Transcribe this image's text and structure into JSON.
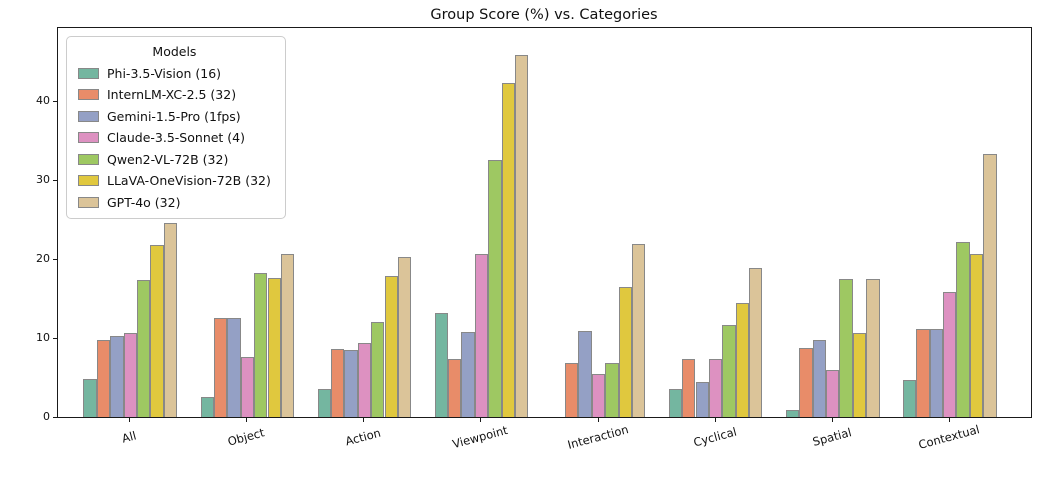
{
  "chart_data": {
    "type": "bar",
    "title": "Group Score (%) vs. Categories",
    "legend_title": "Models",
    "legend_position": "upper left",
    "xlabel": "",
    "ylabel": "",
    "grid": false,
    "background": "#ffffff",
    "bar_edge_color": "#888888",
    "x_tick_rotation_deg": 15,
    "ylim": [
      0,
      49.4
    ],
    "yticks": [
      0,
      10,
      20,
      30,
      40
    ],
    "categories": [
      "All",
      "Object",
      "Action",
      "Viewpoint",
      "Interaction",
      "Cyclical",
      "Spatial",
      "Contextual"
    ],
    "series": [
      {
        "name": "Phi-3.5-Vision (16)",
        "color": "#74b6a0",
        "values": [
          4.8,
          2.5,
          3.5,
          13.2,
          0.0,
          3.6,
          0.9,
          4.7
        ]
      },
      {
        "name": "InternLM-XC-2.5 (32)",
        "color": "#e88c69",
        "values": [
          9.7,
          12.5,
          8.6,
          7.3,
          6.8,
          7.3,
          8.8,
          11.2
        ]
      },
      {
        "name": "Gemini-1.5-Pro (1fps)",
        "color": "#94a0c5",
        "values": [
          10.3,
          12.5,
          8.5,
          10.8,
          10.9,
          4.5,
          9.7,
          11.2
        ]
      },
      {
        "name": "Claude-3.5-Sonnet (4)",
        "color": "#dd91c1",
        "values": [
          10.6,
          7.6,
          9.4,
          20.6,
          5.4,
          7.3,
          5.9,
          15.8
        ]
      },
      {
        "name": "Qwen2-VL-72B (32)",
        "color": "#9ec862",
        "values": [
          17.4,
          18.2,
          12.1,
          32.6,
          6.9,
          11.7,
          17.5,
          22.2
        ]
      },
      {
        "name": "LLaVA-OneVision-72B (32)",
        "color": "#e0c83e",
        "values": [
          21.8,
          17.6,
          17.9,
          42.3,
          16.5,
          14.4,
          10.7,
          20.7
        ]
      },
      {
        "name": "GPT-4o (32)",
        "color": "#dbc499",
        "values": [
          24.6,
          20.7,
          20.3,
          45.9,
          21.9,
          18.9,
          17.5,
          33.3
        ]
      }
    ]
  }
}
